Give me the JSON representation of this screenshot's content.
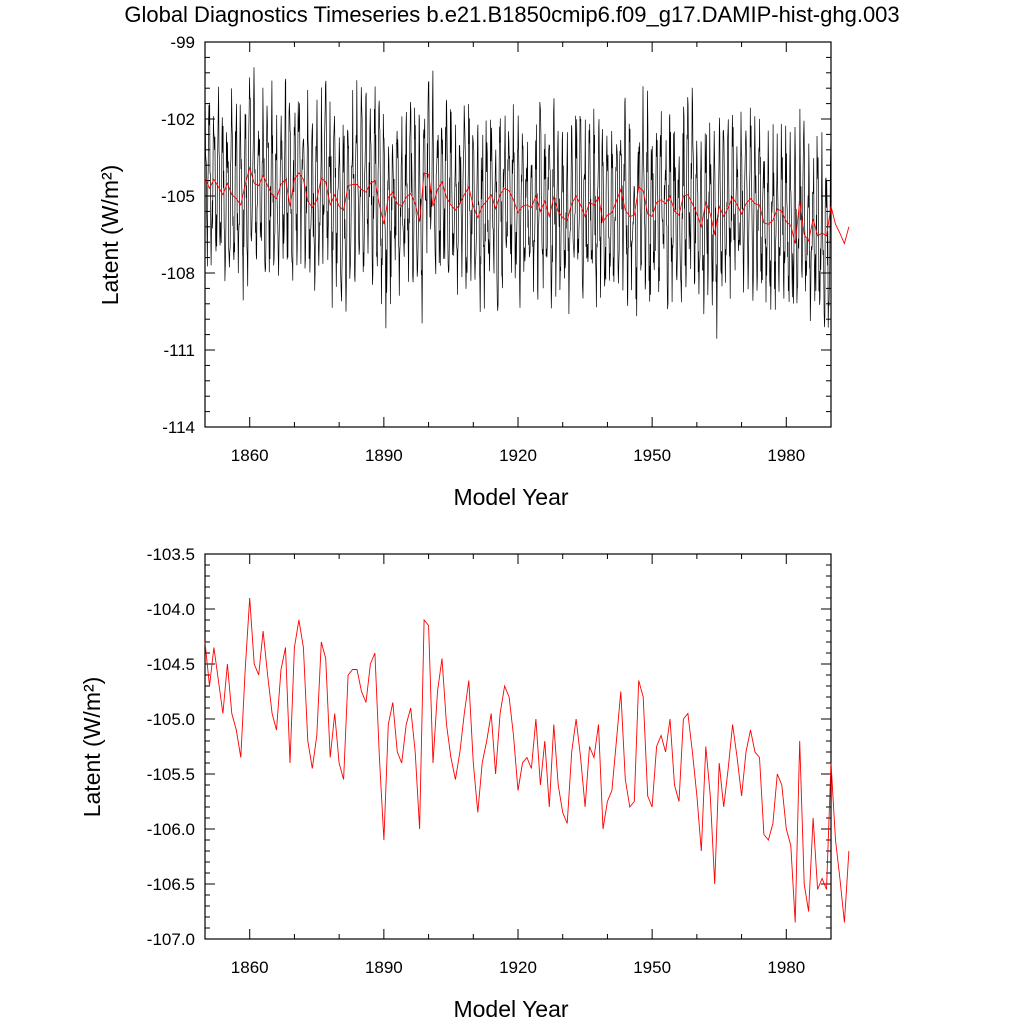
{
  "title": "Global Diagnostics Timeseries b.e21.B1850cmip6.f09_g17.DAMIP-hist-ghg.003",
  "colors": {
    "monthly": "#000000",
    "annual": "#ff0000",
    "axis": "#000000"
  },
  "chart_data": [
    {
      "type": "line",
      "xlabel": "Model Year",
      "ylabel": "Latent (W/m²)",
      "xlim": [
        1850,
        1990
      ],
      "ylim": [
        -114,
        -99
      ],
      "xticks": [
        "1860",
        "1890",
        "1920",
        "1950",
        "1980"
      ],
      "yticks": [
        "-99",
        "-102",
        "-105",
        "-108",
        "-111",
        "-114"
      ],
      "series": [
        {
          "color": "black",
          "description_source": "monthly values, approx. seasonal cycle between about -108 and -102 with extremes near -112.5 and -99.6"
        },
        {
          "color": "red",
          "values_ref": "annual"
        }
      ]
    },
    {
      "type": "line",
      "xlabel": "Model Year",
      "ylabel": "Latent (W/m²)",
      "xlim": [
        1850,
        1990
      ],
      "ylim": [
        -107.0,
        -103.5
      ],
      "xticks": [
        "1860",
        "1890",
        "1920",
        "1950",
        "1980"
      ],
      "yticks": [
        "-103.5",
        "-104.0",
        "-104.5",
        "-105.0",
        "-105.5",
        "-106.0",
        "-106.5",
        "-107.0"
      ],
      "series": [
        {
          "color": "red",
          "values_ref": "annual"
        }
      ]
    }
  ],
  "annual": {
    "x_start": 1850,
    "values": [
      -104.3,
      -104.7,
      -104.35,
      -104.65,
      -104.95,
      -104.5,
      -104.95,
      -105.1,
      -105.35,
      -104.55,
      -103.9,
      -104.5,
      -104.6,
      -104.2,
      -104.6,
      -104.95,
      -105.1,
      -104.55,
      -104.35,
      -105.4,
      -104.35,
      -104.1,
      -104.35,
      -105.2,
      -105.45,
      -105.15,
      -104.3,
      -104.45,
      -105.35,
      -104.95,
      -105.4,
      -105.55,
      -104.6,
      -104.55,
      -104.55,
      -104.75,
      -104.85,
      -104.5,
      -104.4,
      -105.35,
      -106.1,
      -105.05,
      -104.85,
      -105.3,
      -105.4,
      -105.05,
      -104.9,
      -105.3,
      -106.0,
      -104.1,
      -104.15,
      -105.4,
      -104.75,
      -104.45,
      -105.05,
      -105.35,
      -105.55,
      -105.3,
      -104.95,
      -104.65,
      -105.4,
      -105.85,
      -105.4,
      -105.2,
      -104.95,
      -105.5,
      -104.95,
      -104.7,
      -104.8,
      -105.15,
      -105.65,
      -105.4,
      -105.35,
      -105.45,
      -105.0,
      -105.6,
      -105.2,
      -105.8,
      -105.05,
      -105.6,
      -105.85,
      -105.95,
      -105.3,
      -105.0,
      -105.35,
      -105.8,
      -105.25,
      -105.35,
      -105.05,
      -106.0,
      -105.75,
      -105.65,
      -105.2,
      -104.75,
      -105.55,
      -105.8,
      -105.75,
      -104.65,
      -104.8,
      -105.7,
      -105.8,
      -105.25,
      -105.15,
      -105.3,
      -105.0,
      -105.6,
      -105.75,
      -105.0,
      -104.95,
      -105.3,
      -105.7,
      -106.2,
      -105.25,
      -105.7,
      -106.5,
      -105.4,
      -105.8,
      -105.45,
      -105.05,
      -105.35,
      -105.7,
      -105.3,
      -105.1,
      -105.3,
      -105.35,
      -106.05,
      -106.1,
      -105.95,
      -105.5,
      -105.6,
      -106.0,
      -106.15,
      -106.85,
      -105.2,
      -106.5,
      -106.75,
      -105.9,
      -106.55,
      -106.45,
      -106.55,
      -105.4,
      -106.1,
      -106.45,
      -106.85,
      -106.2
    ]
  }
}
